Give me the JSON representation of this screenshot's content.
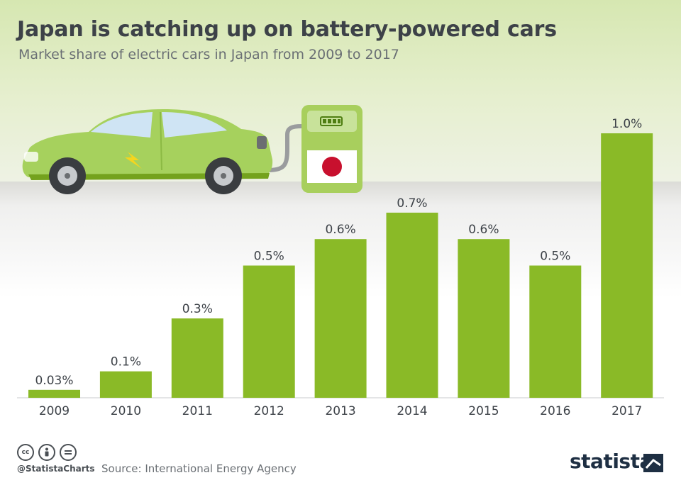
{
  "header": {
    "title": "Japan is catching up on battery-powered cars",
    "subtitle": "Market share of electric cars in Japan from 2009 to 2017"
  },
  "footer": {
    "handle": "@StatistaCharts",
    "source": "Source: International Energy Agency",
    "brand": "statista",
    "license_icons": [
      "cc-icon",
      "by-icon",
      "nd-icon"
    ]
  },
  "colors": {
    "bar": "#8aba27",
    "text_dark": "#3d4248",
    "text_muted": "#6a6f74",
    "car": "#9fcb55",
    "flag_red": "#c8102e"
  },
  "chart_data": {
    "type": "bar",
    "categories": [
      "2009",
      "2010",
      "2011",
      "2012",
      "2013",
      "2014",
      "2015",
      "2016",
      "2017"
    ],
    "values": [
      0.03,
      0.1,
      0.3,
      0.5,
      0.6,
      0.7,
      0.6,
      0.5,
      1.0
    ],
    "labels": [
      "0.03%",
      "0.1%",
      "0.3%",
      "0.5%",
      "0.6%",
      "0.7%",
      "0.6%",
      "0.5%",
      "1.0%"
    ],
    "title": "Japan is catching up on battery-powered cars",
    "subtitle": "Market share of electric cars in Japan from 2009 to 2017",
    "unit": "%",
    "ylim": [
      0,
      1.0
    ],
    "grid": false,
    "legend": "none"
  }
}
